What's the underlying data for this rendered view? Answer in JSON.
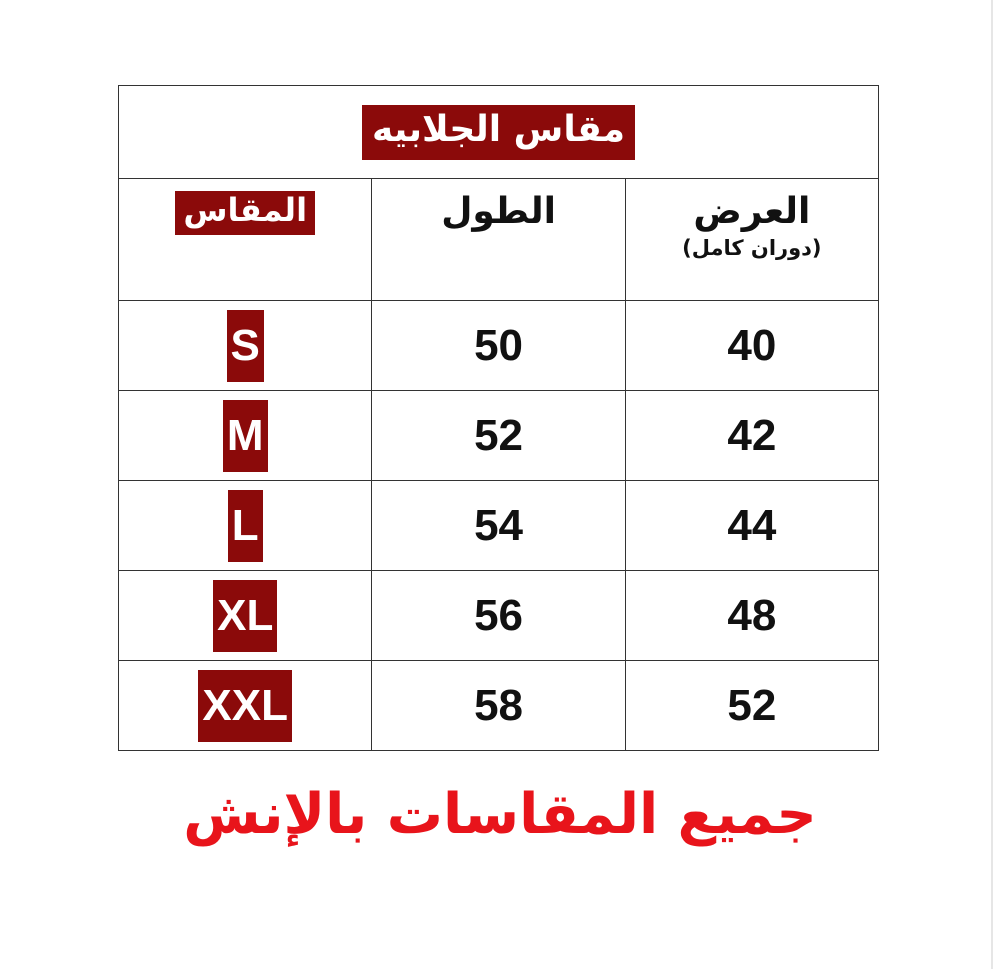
{
  "title": "مقاس الجلابيه",
  "headers": {
    "width": "العرض",
    "width_note": "(دوران كامل)",
    "length": "الطول",
    "size": "المقاس"
  },
  "rows": [
    {
      "size": "S",
      "length": "50",
      "width": "40"
    },
    {
      "size": "M",
      "length": "52",
      "width": "42"
    },
    {
      "size": "L",
      "length": "54",
      "width": "44"
    },
    {
      "size": "XL",
      "length": "56",
      "width": "48"
    },
    {
      "size": "XXL",
      "length": "58",
      "width": "52"
    }
  ],
  "footer": "جميع المقاسات بالإنش",
  "colors": {
    "badge": "#8b0a0a",
    "footer": "#e8141b"
  }
}
